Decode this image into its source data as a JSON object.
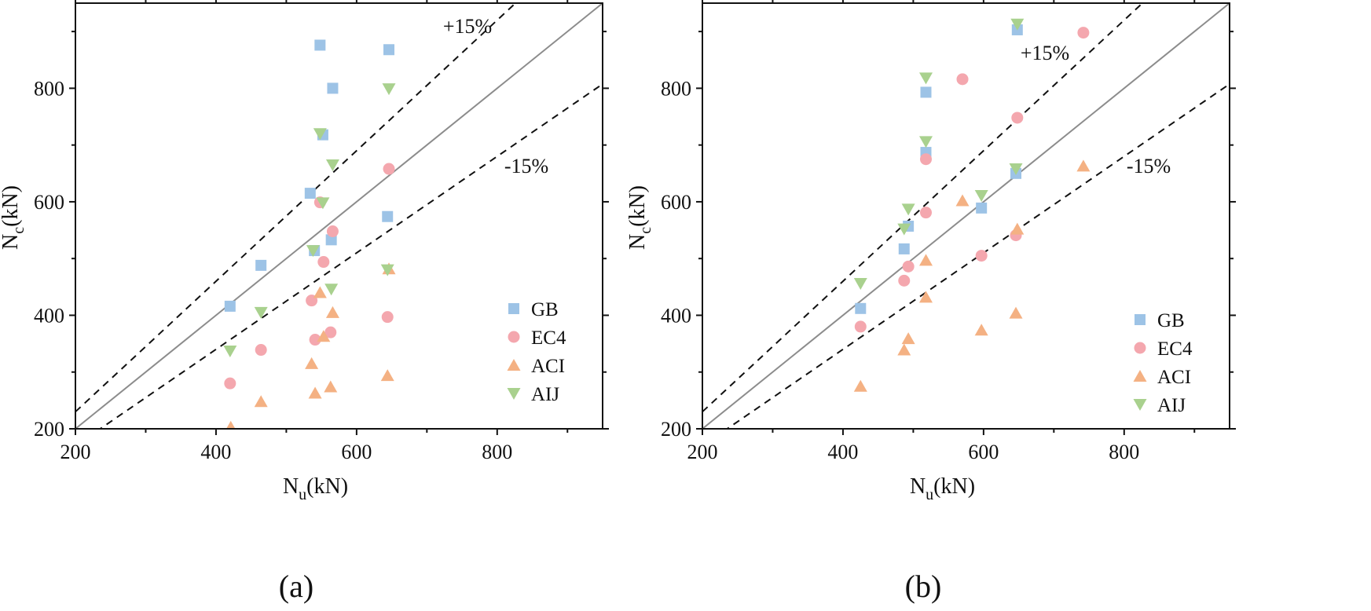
{
  "chart_data": [
    {
      "type": "scatter",
      "caption": "(a)",
      "xlabel": {
        "main": "N",
        "sub": "u",
        "unit": "(kN)"
      },
      "ylabel": {
        "main": "N",
        "sub": "c",
        "unit": "(kN)"
      },
      "xlim": [
        200,
        950
      ],
      "ylim": [
        200,
        950
      ],
      "xticks": [
        200,
        400,
        600,
        800
      ],
      "yticks": [
        200,
        400,
        600,
        800
      ],
      "grid": false,
      "legend_position": "bottom-right",
      "reference_lines": [
        {
          "name": "equality",
          "slope": 1.0,
          "style": "solid"
        },
        {
          "name": "plus-15",
          "slope": 1.15,
          "style": "dashed",
          "label": "+15%"
        },
        {
          "name": "minus-15",
          "slope": 0.85,
          "style": "dashed",
          "label": "-15%"
        }
      ],
      "series": [
        {
          "name": "GB",
          "marker": "square",
          "color": "#9dc3e6",
          "points": [
            [
              420,
              416
            ],
            [
              464,
              488
            ],
            [
              534,
              615
            ],
            [
              540,
              514
            ],
            [
              548,
              876
            ],
            [
              552,
              718
            ],
            [
              564,
              533
            ],
            [
              566,
              800
            ],
            [
              644,
              574
            ],
            [
              646,
              868
            ]
          ]
        },
        {
          "name": "EC4",
          "marker": "circle",
          "color": "#f4a7ae",
          "points": [
            [
              420,
              280
            ],
            [
              464,
              339
            ],
            [
              536,
              426
            ],
            [
              541,
              357
            ],
            [
              548,
              599
            ],
            [
              553,
              494
            ],
            [
              563,
              370
            ],
            [
              566,
              548
            ],
            [
              644,
              397
            ],
            [
              646,
              658
            ]
          ]
        },
        {
          "name": "ACI",
          "marker": "triangle-up",
          "color": "#f4b183",
          "points": [
            [
              421,
              203
            ],
            [
              464,
              248
            ],
            [
              536,
              315
            ],
            [
              541,
              263
            ],
            [
              548,
              440
            ],
            [
              553,
              363
            ],
            [
              563,
              274
            ],
            [
              566,
              405
            ],
            [
              644,
              294
            ],
            [
              646,
              482
            ]
          ]
        },
        {
          "name": "AIJ",
          "marker": "triangle-down",
          "color": "#a9d18e",
          "points": [
            [
              420,
              337
            ],
            [
              464,
              405
            ],
            [
              538,
              514
            ],
            [
              548,
              720
            ],
            [
              552,
              598
            ],
            [
              564,
              446
            ],
            [
              566,
              665
            ],
            [
              644,
              480
            ],
            [
              646,
              799
            ]
          ]
        }
      ]
    },
    {
      "type": "scatter",
      "caption": "(b)",
      "xlabel": {
        "main": "N",
        "sub": "u",
        "unit": "(kN)"
      },
      "ylabel": {
        "main": "N",
        "sub": "c",
        "unit": "(kN)"
      },
      "xlim": [
        200,
        950
      ],
      "ylim": [
        200,
        950
      ],
      "xticks": [
        200,
        400,
        600,
        800
      ],
      "yticks": [
        200,
        400,
        600,
        800
      ],
      "grid": false,
      "legend_position": "bottom-right",
      "reference_lines": [
        {
          "name": "equality",
          "slope": 1.0,
          "style": "solid"
        },
        {
          "name": "plus-15",
          "slope": 1.15,
          "style": "dashed",
          "label": "+15%"
        },
        {
          "name": "minus-15",
          "slope": 0.85,
          "style": "dashed",
          "label": "-15%"
        }
      ],
      "series": [
        {
          "name": "GB",
          "marker": "square",
          "color": "#9dc3e6",
          "points": [
            [
              425,
              412
            ],
            [
              487,
              517
            ],
            [
              493,
              557
            ],
            [
              518,
              687
            ],
            [
              518,
              793
            ],
            [
              597,
              589
            ],
            [
              646,
              650
            ],
            [
              648,
              903
            ]
          ]
        },
        {
          "name": "EC4",
          "marker": "circle",
          "color": "#f4a7ae",
          "points": [
            [
              425,
              380
            ],
            [
              487,
              461
            ],
            [
              493,
              486
            ],
            [
              518,
              675
            ],
            [
              518,
              581
            ],
            [
              570,
              816
            ],
            [
              597,
              505
            ],
            [
              646,
              541
            ],
            [
              648,
              748
            ],
            [
              742,
              898
            ]
          ]
        },
        {
          "name": "ACI",
          "marker": "triangle-up",
          "color": "#f4b183",
          "points": [
            [
              425,
              275
            ],
            [
              487,
              339
            ],
            [
              493,
              359
            ],
            [
              518,
              432
            ],
            [
              518,
              497
            ],
            [
              570,
              602
            ],
            [
              597,
              374
            ],
            [
              646,
              404
            ],
            [
              648,
              552
            ],
            [
              742,
              663
            ]
          ]
        },
        {
          "name": "AIJ",
          "marker": "triangle-down",
          "color": "#a9d18e",
          "points": [
            [
              425,
              456
            ],
            [
              487,
              552
            ],
            [
              493,
              587
            ],
            [
              518,
              706
            ],
            [
              518,
              818
            ],
            [
              597,
              611
            ],
            [
              646,
              658
            ],
            [
              648,
              913
            ]
          ]
        }
      ]
    }
  ]
}
